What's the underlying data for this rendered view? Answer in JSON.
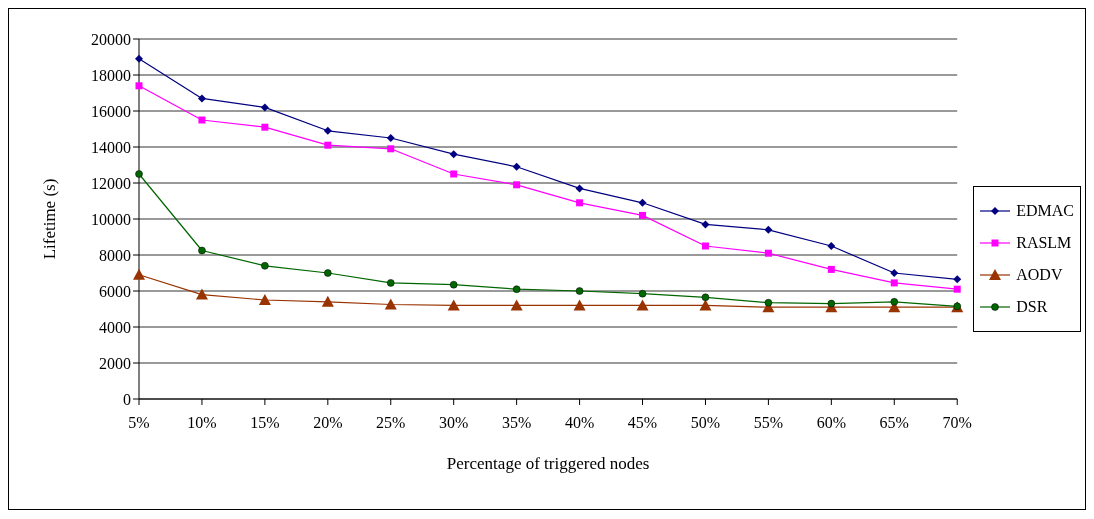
{
  "chart_data": {
    "type": "line",
    "xlabel": "Percentage of  triggered nodes",
    "ylabel": "Lifetime (s)",
    "categories": [
      "5%",
      "10%",
      "15%",
      "20%",
      "25%",
      "30%",
      "35%",
      "40%",
      "45%",
      "50%",
      "55%",
      "60%",
      "65%",
      "70%"
    ],
    "series": [
      {
        "name": "EDMAC",
        "color": "#000080",
        "marker": "diamond",
        "values": [
          18900,
          16700,
          16200,
          14900,
          14500,
          13600,
          12900,
          11700,
          10900,
          9700,
          9400,
          8500,
          7000,
          6650
        ]
      },
      {
        "name": "RASLM",
        "color": "#ff00ff",
        "marker": "square",
        "values": [
          17400,
          15500,
          15100,
          14100,
          13900,
          12500,
          11900,
          10900,
          10200,
          8500,
          8100,
          7200,
          6450,
          6100
        ]
      },
      {
        "name": "AODV",
        "color": "#993300",
        "marker": "triangle",
        "values": [
          6900,
          5800,
          5500,
          5400,
          5250,
          5200,
          5200,
          5200,
          5200,
          5200,
          5100,
          5100,
          5100,
          5100
        ]
      },
      {
        "name": "DSR",
        "color": "#006600",
        "marker": "circle",
        "values": [
          12500,
          8250,
          7400,
          7000,
          6450,
          6350,
          6100,
          6000,
          5850,
          5650,
          5350,
          5300,
          5400,
          5150
        ]
      }
    ],
    "ylim": [
      0,
      20000
    ],
    "yticks": [
      0,
      2000,
      4000,
      6000,
      8000,
      10000,
      12000,
      14000,
      16000,
      18000,
      20000
    ],
    "grid": "y",
    "legend": "right",
    "line_style": "solid"
  }
}
